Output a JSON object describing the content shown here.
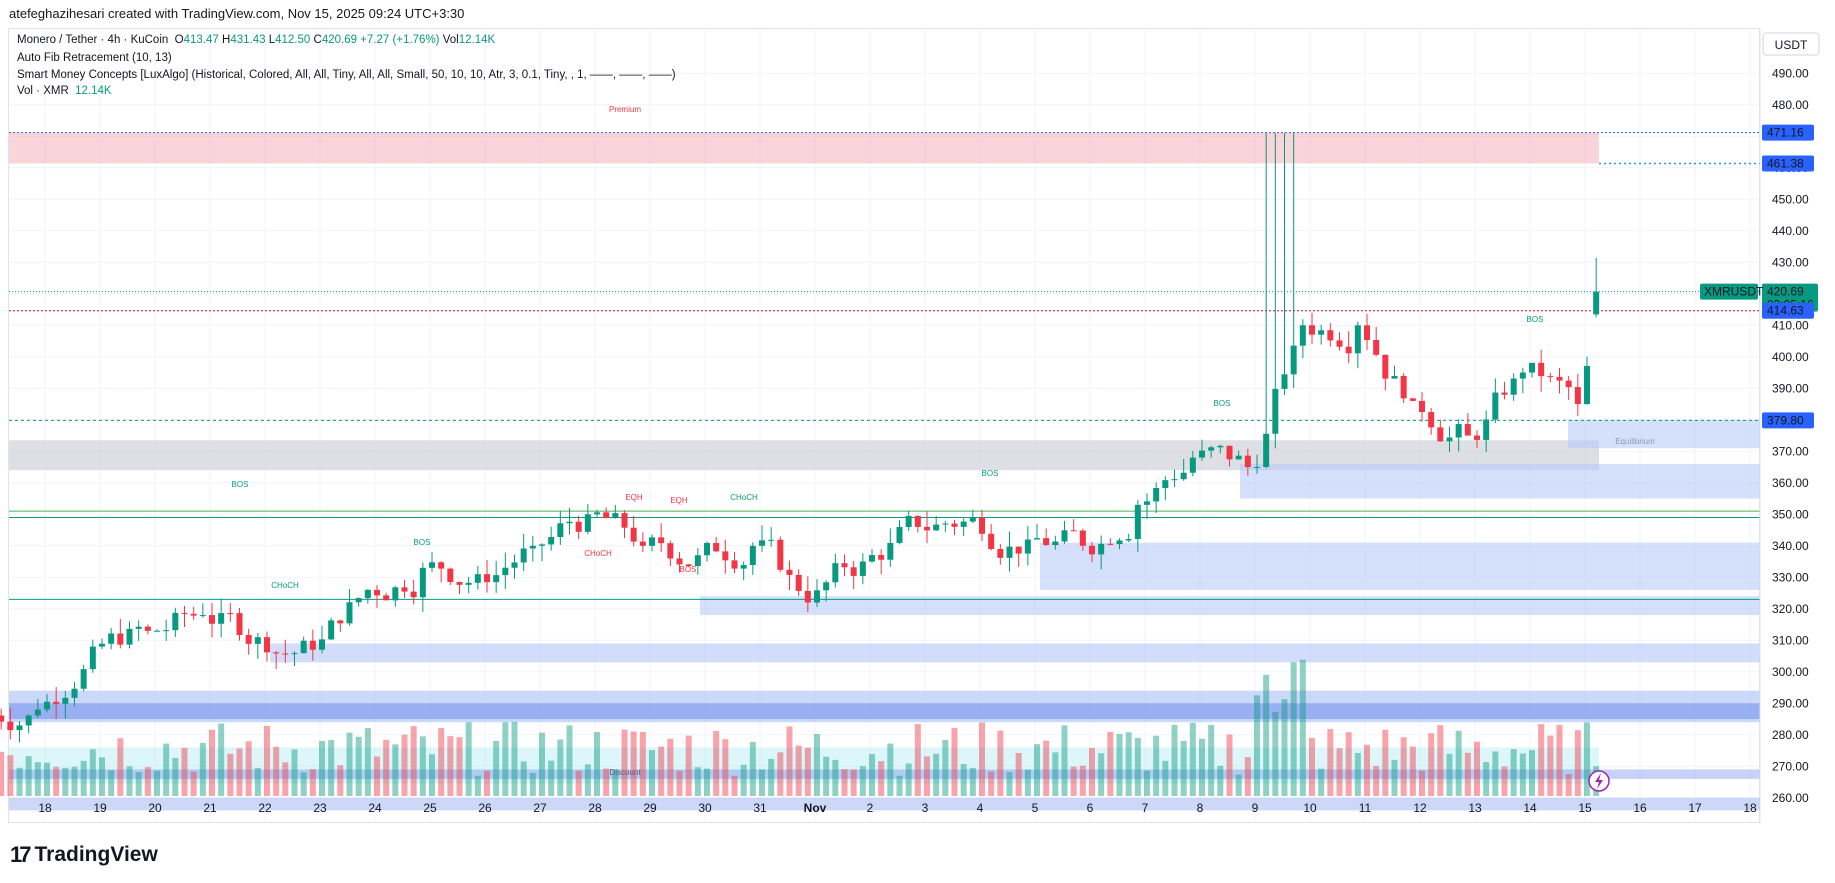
{
  "header": {
    "attribution": "atefeghazihesari created with TradingView.com, Nov 15, 2025 09:24 UTC+3:30"
  },
  "legend": {
    "symbol": "Monero / Tether · 4h · KuCoin",
    "o_label": "O",
    "o_value": "413.47",
    "h_label": "H",
    "h_value": "431.43",
    "l_label": "L",
    "l_value": "412.50",
    "c_label": "C",
    "c_value": "420.69",
    "change": "+7.27 (+1.76%)",
    "vol_label": "Vol",
    "vol_value": "12.14K",
    "indicator1": "Auto Fib Retracement (10, 13)",
    "indicator2": "Smart Money Concepts [LuxAlgo] (Historical, Colored, All, All, Tiny, All, All, Small, 50, 10, 10, Atr, 3, 0.1, Tiny, , 1, ——, ——, ——)",
    "indicator3_label": "Vol · XMR",
    "indicator3_value": "12.14K"
  },
  "price_axis": {
    "currency": "USDT",
    "ticks": [
      "490.00",
      "480.00",
      "470.00",
      "460.00",
      "450.00",
      "440.00",
      "430.00",
      "420.00",
      "410.00",
      "400.00",
      "390.00",
      "380.00",
      "370.00",
      "360.00",
      "350.00",
      "340.00",
      "330.00",
      "320.00",
      "310.00",
      "300.00",
      "290.00",
      "280.00",
      "270.00",
      "260.00"
    ],
    "badges": {
      "level_a": "471.16",
      "level_b": "461.38",
      "symbol_tag": "XMRUSDT",
      "last_price": "420.69",
      "countdown": "02:05:16",
      "level_c": "414.63",
      "level_d": "379.80"
    }
  },
  "time_axis": {
    "labels": [
      "18",
      "19",
      "20",
      "21",
      "22",
      "23",
      "24",
      "25",
      "26",
      "27",
      "28",
      "29",
      "30",
      "31",
      "Nov",
      "2",
      "3",
      "4",
      "5",
      "6",
      "7",
      "8",
      "9",
      "10",
      "11",
      "12",
      "13",
      "14",
      "15",
      "16",
      "17",
      "18"
    ]
  },
  "zones": {
    "premium": "Premium",
    "equilibrium": "Equilibrium",
    "discount": "Discount"
  },
  "structure_labels": {
    "bos": "BOS",
    "choch_upper": "CHoCH",
    "choch_lower": "CHoCH",
    "eqh": "EQH"
  },
  "footer": {
    "brand": "TradingView"
  },
  "colors": {
    "up": "#089981",
    "down": "#f23645",
    "price_badge_blue": "#2962ff",
    "premium_zone": "#f7c6cb",
    "equilibrium_zone": "#d1d4dc",
    "discount_zone": "#b2ebf2",
    "order_block_blue": "#b3c7f7"
  },
  "chart_data": {
    "type": "candlestick",
    "symbol": "XMRUSDT",
    "timeframe": "4h",
    "y_range": [
      252,
      496
    ],
    "x_range": [
      "Oct 17 22:00",
      "Nov 18 00:00"
    ],
    "last": {
      "open": 413.47,
      "high": 431.43,
      "low": 412.5,
      "close": 420.69
    },
    "horizontal_levels": [
      471.16,
      461.38,
      414.63,
      379.8,
      351,
      323
    ],
    "daily_closes": [
      {
        "day": "Oct 17",
        "close": 288
      },
      {
        "day": "Oct 18",
        "close": 308
      },
      {
        "day": "Oct 19",
        "close": 313
      },
      {
        "day": "Oct 20",
        "close": 318
      },
      {
        "day": "Oct 21",
        "close": 311
      },
      {
        "day": "Oct 22",
        "close": 307
      },
      {
        "day": "Oct 23",
        "close": 326
      },
      {
        "day": "Oct 24",
        "close": 333
      },
      {
        "day": "Oct 25",
        "close": 331
      },
      {
        "day": "Oct 26",
        "close": 340
      },
      {
        "day": "Oct 27",
        "close": 350
      },
      {
        "day": "Oct 28",
        "close": 340
      },
      {
        "day": "Oct 29",
        "close": 337
      },
      {
        "day": "Oct 30",
        "close": 340
      },
      {
        "day": "Oct 31",
        "close": 322
      },
      {
        "day": "Nov 1",
        "close": 335
      },
      {
        "day": "Nov 2",
        "close": 346
      },
      {
        "day": "Nov 3",
        "close": 349
      },
      {
        "day": "Nov 4",
        "close": 342
      },
      {
        "day": "Nov 5",
        "close": 340
      },
      {
        "day": "Nov 6",
        "close": 353
      },
      {
        "day": "Nov 7",
        "close": 368
      },
      {
        "day": "Nov 8",
        "close": 365
      },
      {
        "day": "Nov 9",
        "close": 410
      },
      {
        "day": "Nov 10",
        "close": 410
      },
      {
        "day": "Nov 11",
        "close": 386
      },
      {
        "day": "Nov 12",
        "close": 375
      },
      {
        "day": "Nov 13",
        "close": 395
      },
      {
        "day": "Nov 14",
        "close": 385
      },
      {
        "day": "Nov 15",
        "close": 420.69
      }
    ]
  }
}
